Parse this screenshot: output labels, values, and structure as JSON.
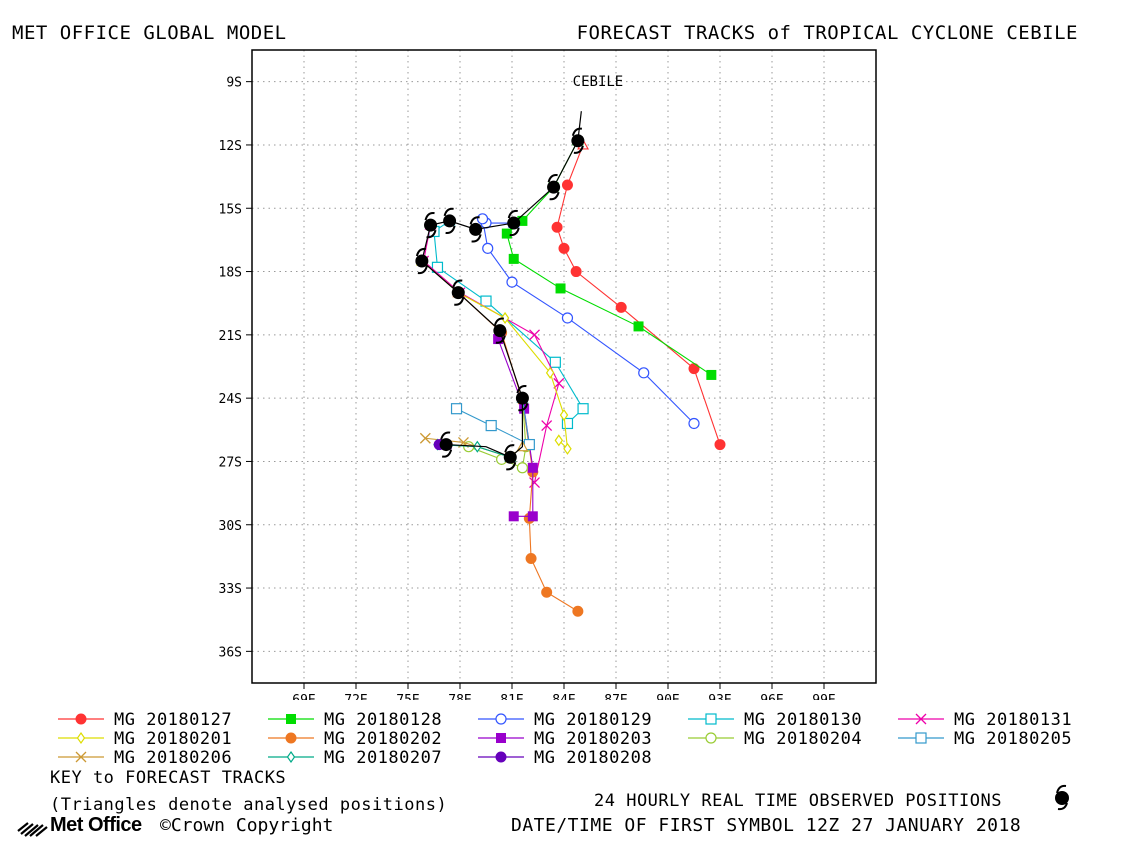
{
  "header": {
    "left": "MET OFFICE GLOBAL MODEL",
    "right": "FORECAST TRACKS of TROPICAL CYCLONE CEBILE"
  },
  "chart_data": {
    "type": "line",
    "title": "FORECAST TRACKS of TROPICAL CYCLONE CEBILE",
    "xlabel": "",
    "ylabel": "",
    "xlim": [
      66.0,
      102.0
    ],
    "ylim": [
      -37.5,
      -7.5
    ],
    "x_ticks": [
      69,
      72,
      75,
      78,
      81,
      84,
      87,
      90,
      93,
      96,
      99
    ],
    "x_tick_labels": [
      "69E",
      "72E",
      "75E",
      "78E",
      "81E",
      "84E",
      "87E",
      "90E",
      "93E",
      "96E",
      "99E"
    ],
    "y_ticks": [
      -9,
      -12,
      -15,
      -18,
      -21,
      -24,
      -27,
      -30,
      -33,
      -36
    ],
    "y_tick_labels": [
      "9S",
      "12S",
      "15S",
      "18S",
      "21S",
      "24S",
      "27S",
      "30S",
      "33S",
      "36S"
    ],
    "grid": true,
    "storm_label": "CEBILE",
    "storm_label_position": {
      "lon": 84.5,
      "lat": -9.2
    },
    "observed_track": [
      [
        85.0,
        -10.4
      ],
      [
        84.8,
        -11.8
      ],
      [
        83.4,
        -14.0
      ],
      [
        81.1,
        -15.7
      ],
      [
        78.9,
        -16.0
      ],
      [
        77.4,
        -15.6
      ],
      [
        76.3,
        -15.8
      ],
      [
        75.8,
        -17.5
      ],
      [
        77.9,
        -19.0
      ],
      [
        80.3,
        -20.8
      ],
      [
        81.6,
        -24.0
      ],
      [
        81.6,
        -26.3
      ],
      [
        80.9,
        -26.8
      ],
      [
        79.5,
        -26.3
      ],
      [
        77.2,
        -26.2
      ]
    ],
    "observed_positions": [
      [
        84.8,
        -11.8
      ],
      [
        83.4,
        -14.0
      ],
      [
        81.1,
        -15.7
      ],
      [
        78.9,
        -16.0
      ],
      [
        77.4,
        -15.6
      ],
      [
        76.3,
        -15.8
      ],
      [
        75.8,
        -17.5
      ],
      [
        77.9,
        -19.0
      ],
      [
        80.3,
        -20.8
      ],
      [
        81.6,
        -24.0
      ],
      [
        80.9,
        -26.8
      ],
      [
        77.2,
        -26.2
      ]
    ],
    "series": [
      {
        "name": "MG 20180127",
        "color": "#ff3333",
        "marker": "circle-filled",
        "points": [
          [
            85.1,
            -12.0
          ],
          [
            84.2,
            -13.9
          ],
          [
            83.6,
            -15.9
          ],
          [
            84.0,
            -16.9
          ],
          [
            84.7,
            -18.0
          ],
          [
            87.3,
            -19.7
          ],
          [
            91.5,
            -22.6
          ],
          [
            93.0,
            -26.2
          ]
        ]
      },
      {
        "name": "MG 20180128",
        "color": "#00dd00",
        "marker": "square-filled",
        "points": [
          [
            84.8,
            -11.8
          ],
          [
            83.4,
            -14.0
          ],
          [
            81.6,
            -15.6
          ],
          [
            80.7,
            -16.2
          ],
          [
            81.1,
            -17.4
          ],
          [
            83.8,
            -18.8
          ],
          [
            88.3,
            -20.6
          ],
          [
            92.5,
            -22.9
          ]
        ]
      },
      {
        "name": "MG 20180129",
        "color": "#3355ff",
        "marker": "circle-open",
        "points": [
          [
            81.1,
            -15.7
          ],
          [
            79.5,
            -15.7
          ],
          [
            79.3,
            -15.5
          ],
          [
            79.6,
            -16.9
          ],
          [
            81.0,
            -18.5
          ],
          [
            84.2,
            -20.2
          ],
          [
            88.6,
            -22.8
          ],
          [
            91.5,
            -25.2
          ]
        ]
      },
      {
        "name": "MG 20180130",
        "color": "#00bbcc",
        "marker": "square-open",
        "points": [
          [
            77.4,
            -15.6
          ],
          [
            76.5,
            -16.1
          ],
          [
            76.7,
            -17.8
          ],
          [
            79.5,
            -19.4
          ],
          [
            83.5,
            -22.3
          ],
          [
            85.1,
            -24.5
          ],
          [
            84.2,
            -25.2
          ]
        ]
      },
      {
        "name": "MG 20180131",
        "color": "#ee00aa",
        "marker": "x",
        "points": [
          [
            76.3,
            -15.8
          ],
          [
            75.9,
            -17.5
          ],
          [
            78.0,
            -19.0
          ],
          [
            82.3,
            -21.0
          ],
          [
            83.7,
            -23.3
          ],
          [
            83.0,
            -25.3
          ],
          [
            82.3,
            -28.0
          ]
        ]
      },
      {
        "name": "MG 20180201",
        "color": "#dddd00",
        "marker": "diamond-open",
        "points": [
          [
            75.8,
            -17.5
          ],
          [
            77.9,
            -19.0
          ],
          [
            80.6,
            -20.2
          ],
          [
            83.2,
            -22.8
          ],
          [
            84.0,
            -24.8
          ],
          [
            84.2,
            -26.4
          ],
          [
            83.7,
            -26.0
          ]
        ]
      },
      {
        "name": "MG 20180202",
        "color": "#ee7722",
        "marker": "circle-filled",
        "points": [
          [
            77.9,
            -19.0
          ],
          [
            80.4,
            -20.9
          ],
          [
            81.6,
            -24.1
          ],
          [
            82.2,
            -27.5
          ],
          [
            82.0,
            -29.7
          ],
          [
            82.1,
            -31.6
          ],
          [
            83.0,
            -33.2
          ],
          [
            84.8,
            -34.1
          ]
        ]
      },
      {
        "name": "MG 20180203",
        "color": "#9900cc",
        "marker": "square-filled",
        "points": [
          [
            80.3,
            -20.8
          ],
          [
            80.2,
            -21.2
          ],
          [
            81.7,
            -24.5
          ],
          [
            82.2,
            -27.3
          ],
          [
            82.2,
            -29.6
          ],
          [
            81.1,
            -29.6
          ]
        ]
      },
      {
        "name": "MG 20180204",
        "color": "#99cc33",
        "marker": "circle-open",
        "points": [
          [
            81.6,
            -24.0
          ],
          [
            81.8,
            -26.3
          ],
          [
            81.6,
            -27.3
          ],
          [
            80.4,
            -26.9
          ],
          [
            78.5,
            -26.3
          ]
        ]
      },
      {
        "name": "MG 20180205",
        "color": "#3399cc",
        "marker": "square-open",
        "points": [
          [
            81.6,
            -24.0
          ],
          [
            82.0,
            -26.2
          ],
          [
            79.8,
            -25.3
          ],
          [
            77.8,
            -24.5
          ]
        ]
      },
      {
        "name": "MG 20180206",
        "color": "#cc9933",
        "marker": "x",
        "points": [
          [
            81.6,
            -26.3
          ],
          [
            80.9,
            -26.8
          ],
          [
            78.2,
            -26.1
          ],
          [
            76.0,
            -25.9
          ]
        ]
      },
      {
        "name": "MG 20180207",
        "color": "#00aa88",
        "marker": "diamond-open",
        "points": [
          [
            80.9,
            -26.8
          ],
          [
            79.0,
            -26.3
          ],
          [
            76.7,
            -26.2
          ]
        ]
      },
      {
        "name": "MG 20180208",
        "color": "#6600bb",
        "marker": "circle-filled",
        "points": [
          [
            77.2,
            -26.2
          ],
          [
            76.8,
            -26.2
          ]
        ]
      }
    ]
  },
  "footer": {
    "key_title": "KEY to FORECAST TRACKS",
    "key_note": "(Triangles denote analysed positions)",
    "observed_note": "24 HOURLY REAL TIME OBSERVED POSITIONS",
    "first_symbol": "DATE/TIME OF FIRST SYMBOL 12Z 27 JANUARY 2018",
    "logo": "Met Office",
    "copyright": "©Crown Copyright"
  }
}
